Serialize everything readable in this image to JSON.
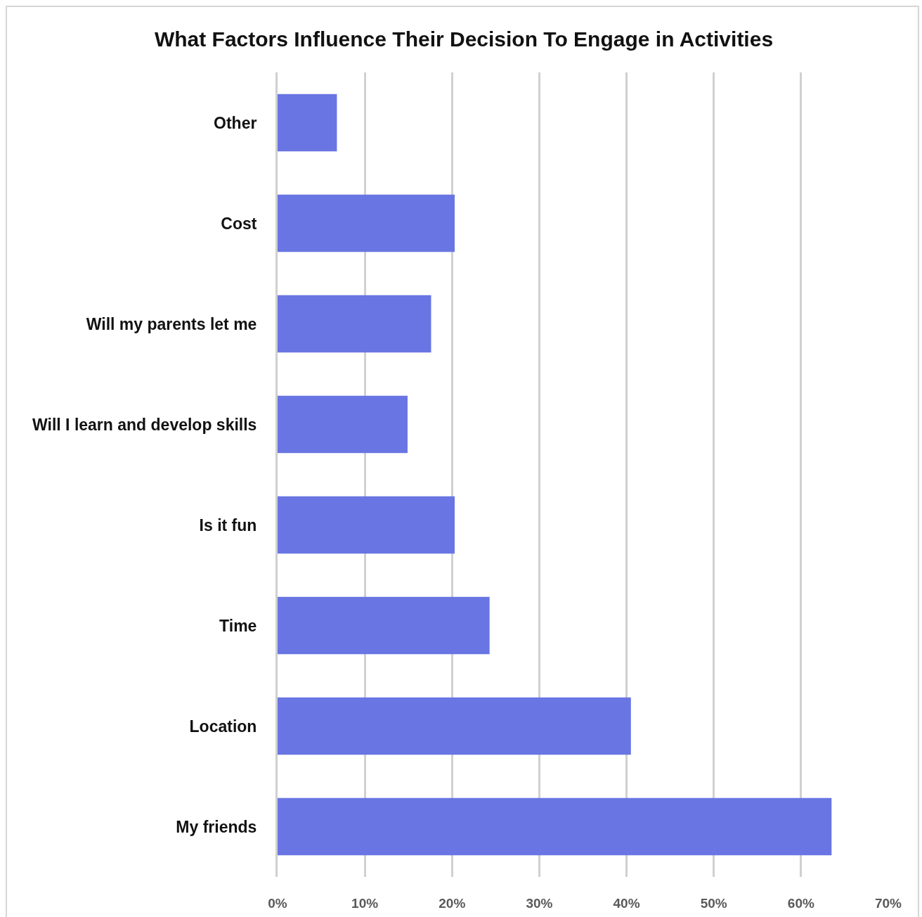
{
  "chart_data": {
    "type": "bar",
    "orientation": "horizontal",
    "title": "What Factors Influence Their Decision To Engage in Activities",
    "categories": [
      "Other",
      "Cost",
      "Will my parents let me",
      "Will I learn and develop skills",
      "Is it fun",
      "Time",
      "Location",
      "My friends"
    ],
    "values": [
      6.8,
      20.3,
      17.6,
      14.9,
      20.3,
      24.3,
      40.5,
      63.5
    ],
    "color": "#6975e2",
    "xlim": [
      0,
      70
    ],
    "xticks": [
      {
        "value": 0,
        "label": "0%"
      },
      {
        "value": 10,
        "label": "10%"
      },
      {
        "value": 20,
        "label": "20%"
      },
      {
        "value": 30,
        "label": "30%"
      },
      {
        "value": 40,
        "label": "40%"
      },
      {
        "value": 50,
        "label": "50%"
      },
      {
        "value": 60,
        "label": "60%"
      },
      {
        "value": 70,
        "label": "70%"
      }
    ],
    "grid": "x"
  }
}
